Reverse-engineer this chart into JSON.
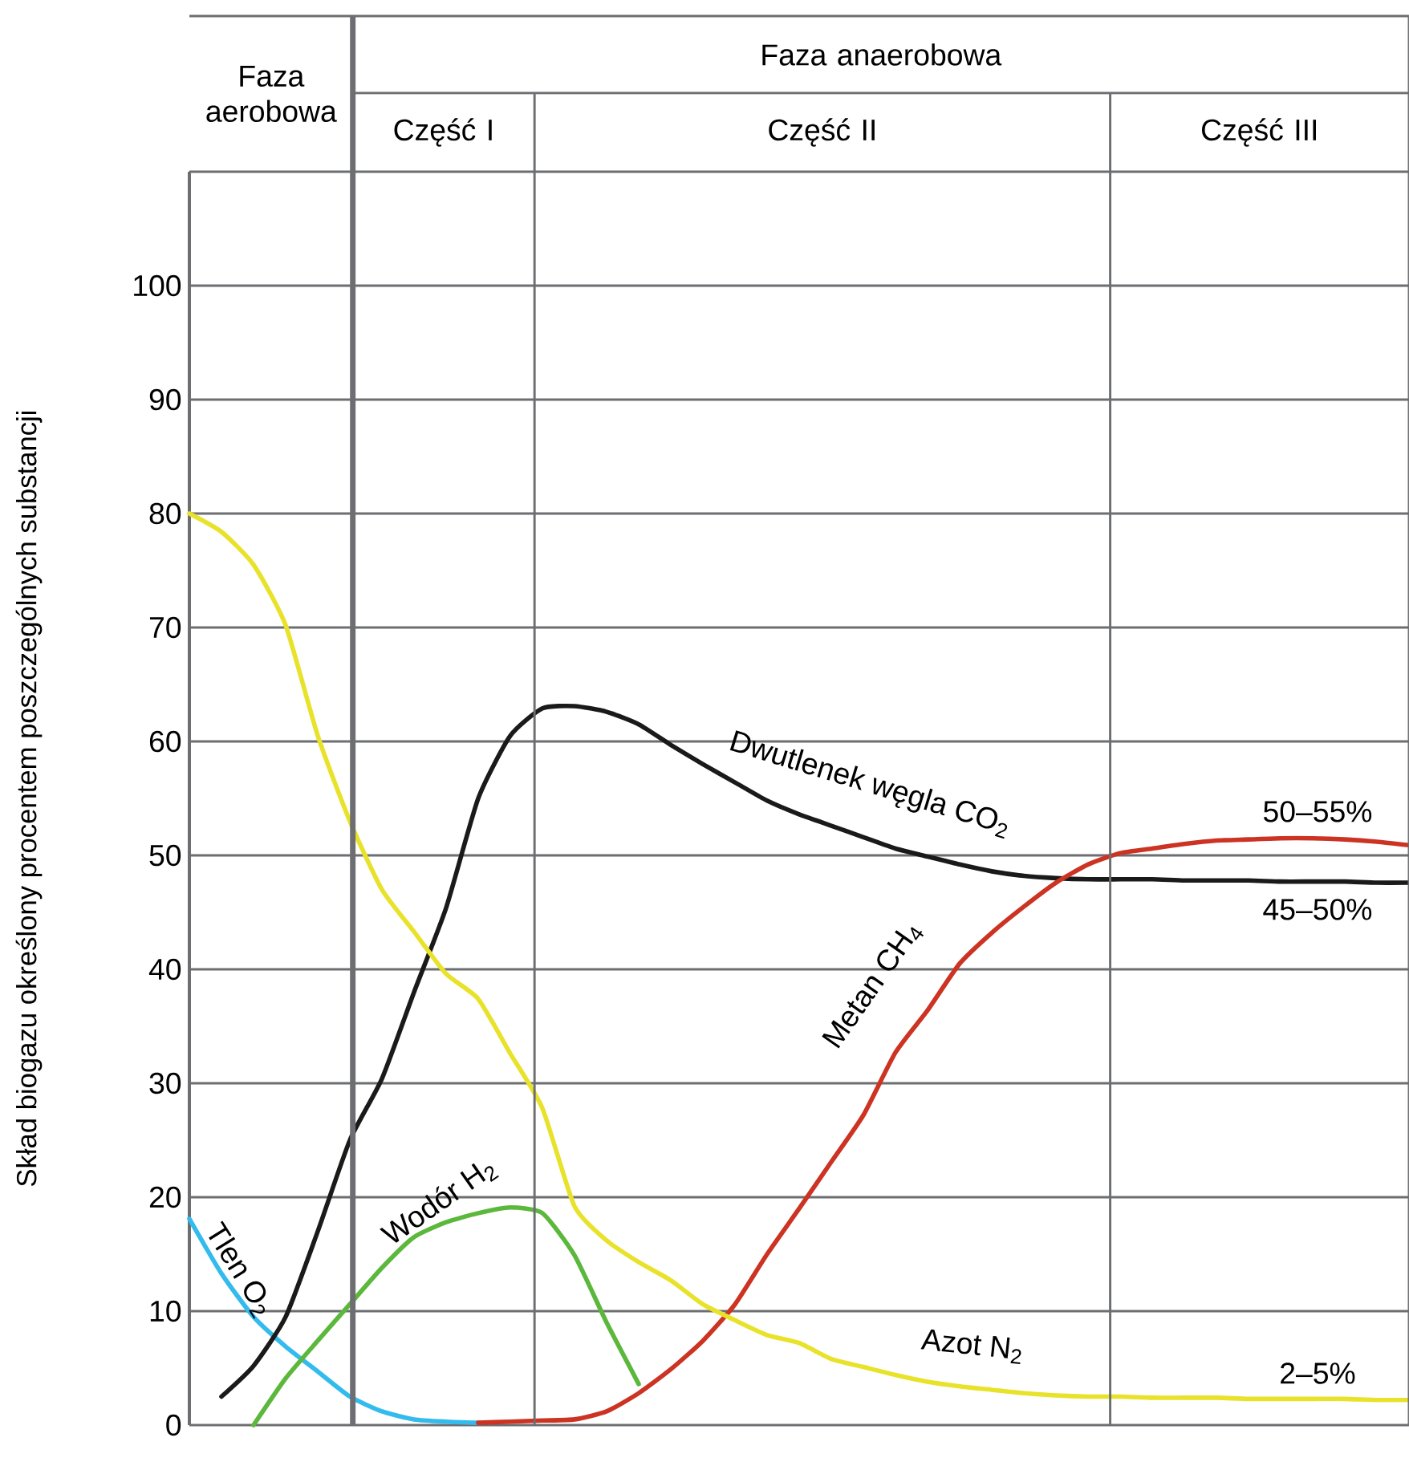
{
  "chart_data": {
    "type": "line",
    "ylabel": "Skład biogazu określony procentem poszczególnych substancji",
    "categories": [
      null,
      null,
      null,
      null,
      null,
      null,
      null,
      null,
      null,
      null,
      null,
      null,
      null,
      null,
      null,
      null,
      null,
      null,
      null,
      null,
      null,
      null,
      null,
      null,
      null,
      null,
      null,
      null,
      null,
      null,
      null,
      null,
      null,
      null,
      null,
      null,
      null,
      null,
      null
    ],
    "series": [
      {
        "name": "Tlen O$_{2}$",
        "color": "#33bbee",
        "values": [
          18.1,
          13.3,
          9.5,
          6.9,
          4.7,
          2.5,
          1.2,
          0.5,
          0.3,
          0.2,
          null,
          null,
          null,
          null,
          null,
          null,
          null,
          null,
          null,
          null,
          null,
          null,
          null,
          null,
          null,
          null,
          null,
          null,
          null,
          null,
          null,
          null,
          null,
          null,
          null,
          null,
          null,
          null,
          null
        ]
      },
      {
        "name": "Wodór H$_{2}$",
        "color": "#5cb83c",
        "values": [
          null,
          null,
          0,
          4.1,
          7.4,
          10.6,
          13.8,
          16.5,
          17.8,
          18.6,
          19.1,
          18.6,
          14.9,
          9.0,
          3.6,
          null,
          null,
          null,
          null,
          null,
          null,
          null,
          null,
          null,
          null,
          null,
          null,
          null,
          null,
          null,
          null,
          null,
          null,
          null,
          null,
          null,
          null,
          null,
          null
        ]
      },
      {
        "name": "Dwutlenek węgla CO$_{2}$",
        "color": "#1a1a1a",
        "values": [
          null,
          2.5,
          5.2,
          9.5,
          17,
          25,
          30.4,
          38,
          45.4,
          55,
          60.5,
          62.9,
          63.1,
          62.6,
          61.5,
          59.7,
          58,
          56.4,
          54.8,
          53.6,
          52.6,
          51.6,
          50.6,
          49.9,
          49.2,
          48.6,
          48.2,
          48.0,
          47.9,
          47.9,
          47.9,
          47.8,
          47.8,
          47.8,
          47.7,
          47.7,
          47.7,
          47.6,
          47.6
        ]
      },
      {
        "name": "Metan CH$_{4}$",
        "color": "#cc3322",
        "values": [
          null,
          null,
          null,
          null,
          null,
          null,
          null,
          null,
          null,
          0.2,
          0.3,
          0.4,
          0.5,
          1.2,
          2.8,
          4.9,
          7.4,
          10.6,
          15,
          19,
          23.1,
          27.2,
          32.7,
          36.4,
          40.5,
          43.2,
          45.5,
          47.6,
          49.2,
          50.2,
          50.6,
          51.0,
          51.3,
          51.4,
          51.5,
          51.5,
          51.4,
          51.2,
          50.9
        ]
      },
      {
        "name": "Azot N$_{2}$",
        "color": "#e8e22a",
        "values": [
          80,
          78.4,
          75.5,
          70.2,
          60.5,
          53,
          47,
          43.3,
          39.6,
          37.4,
          32.6,
          27.8,
          19.2,
          16.2,
          14.3,
          12.7,
          10.6,
          9.2,
          7.9,
          7.2,
          5.8,
          5.1,
          4.4,
          3.8,
          3.4,
          3.1,
          2.8,
          2.6,
          2.5,
          2.5,
          2.4,
          2.4,
          2.4,
          2.3,
          2.3,
          2.3,
          2.3,
          2.2,
          2.2
        ]
      }
    ],
    "ylim": [
      0,
      110
    ],
    "yticks": [
      0,
      10,
      20,
      30,
      40,
      50,
      60,
      70,
      80,
      90,
      100
    ],
    "grid": "y",
    "annotations": [
      "Faza aerobowa",
      "Faza anaerobowa",
      "Część I",
      "Część II",
      "Część III",
      {
        "text": "50–55%",
        "y": 51.5
      },
      {
        "text": "45–50%",
        "y": 47.6
      },
      {
        "text": "2–5%",
        "y": 2.2
      }
    ]
  }
}
